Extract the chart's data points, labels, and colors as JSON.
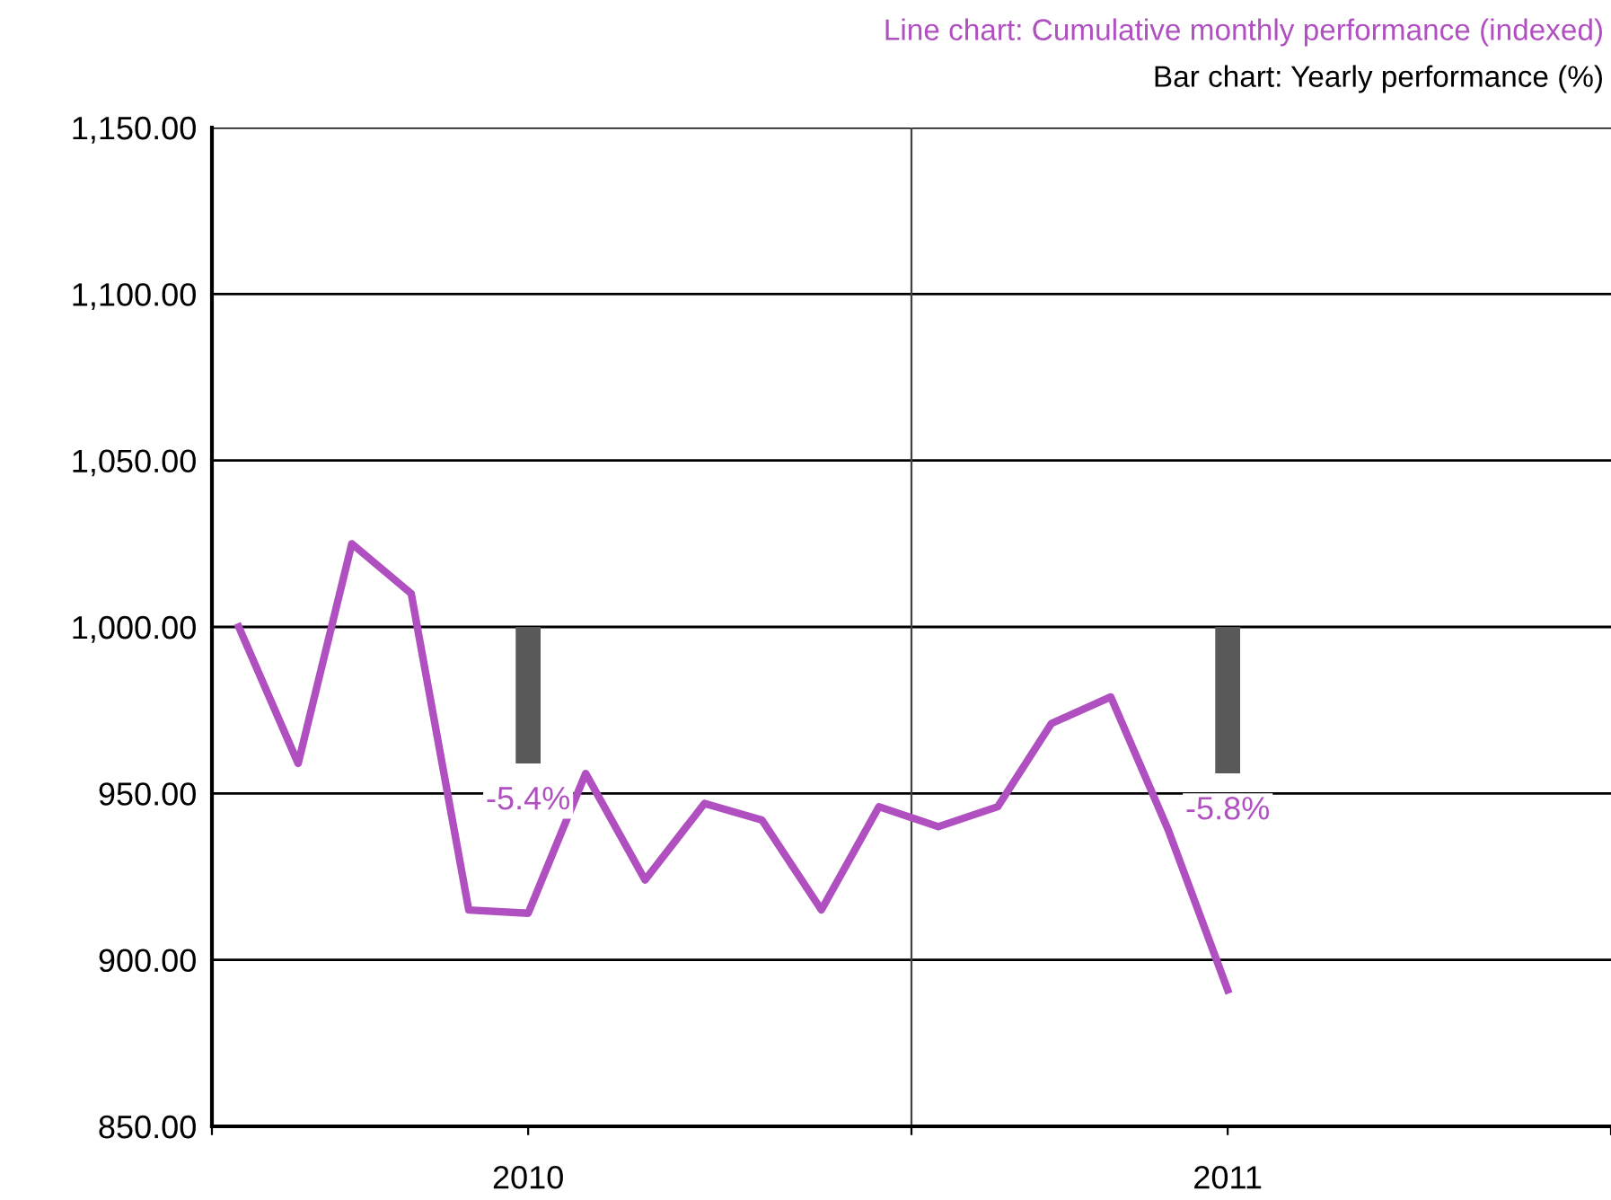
{
  "chart_data": {
    "type": "line",
    "title": "Line chart: Cumulative monthly performance (indexed)",
    "subtitle": "Bar chart: Yearly performance (%)",
    "xlim": [
      "2010-01-01",
      "2012-01-01"
    ],
    "xticks": [
      {
        "value": "2010-01-01",
        "label": null
      },
      {
        "value": "2010-06-15",
        "label": "2010"
      },
      {
        "value": "2011-01-01",
        "label": null
      },
      {
        "value": "2011-06-15",
        "label": "2011"
      },
      {
        "value": "2012-01-01",
        "label": null
      }
    ],
    "ylim": [
      850,
      1150
    ],
    "yticks": [
      {
        "value": 850,
        "label": "850.00"
      },
      {
        "value": 900,
        "label": "900.00"
      },
      {
        "value": 950,
        "label": "950.00"
      },
      {
        "value": 1000,
        "label": "1,000.00"
      },
      {
        "value": 1050,
        "label": "1,050.00"
      },
      {
        "value": 1100,
        "label": "1,100.00"
      },
      {
        "value": 1150,
        "label": "1,150.00"
      }
    ],
    "grid": "y",
    "legend": false,
    "marker": "none",
    "line_style": "solid",
    "ref_lines": [
      {
        "axis": "x",
        "value": "2011-01-01",
        "color": "#404040"
      }
    ],
    "series": [
      {
        "color": "#b04fc0",
        "x": [
          "2010-01-15",
          "2010-02-15",
          "2010-03-15",
          "2010-04-15",
          "2010-05-15",
          "2010-06-15",
          "2010-07-15",
          "2010-08-15",
          "2010-09-15",
          "2010-10-15",
          "2010-11-15",
          "2010-12-15",
          "2011-01-15",
          "2011-02-15",
          "2011-03-15",
          "2011-04-15",
          "2011-05-15",
          "2011-06-15"
        ],
        "values": [
          1000,
          959,
          1025,
          1010,
          915,
          914,
          956,
          924,
          947,
          942,
          915,
          946,
          940,
          946,
          971,
          979,
          939,
          891
        ]
      },
      {
        "type": "bar",
        "color": "#595959",
        "x": [
          "2010-06-15",
          "2011-06-15"
        ],
        "base": [
          1000,
          1000
        ],
        "values": [
          -41,
          -44
        ]
      }
    ],
    "annotations": [
      {
        "text": "-5.4%",
        "x": "2010-06-15",
        "y": 959
      },
      {
        "text": "-5.8%",
        "x": "2011-06-15",
        "y": 956
      }
    ]
  }
}
